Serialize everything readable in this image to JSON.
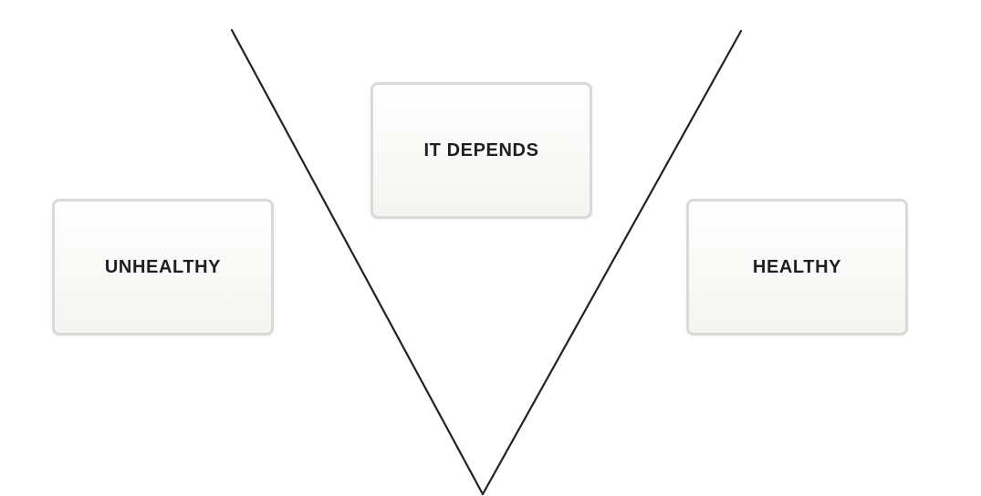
{
  "diagram": {
    "cards": {
      "unhealthy": "UNHEALTHY",
      "depends": "IT DEPENDS",
      "healthy": "HEALTHY"
    },
    "line_color": "#222222",
    "card_border_color": "#d9d9d7"
  }
}
